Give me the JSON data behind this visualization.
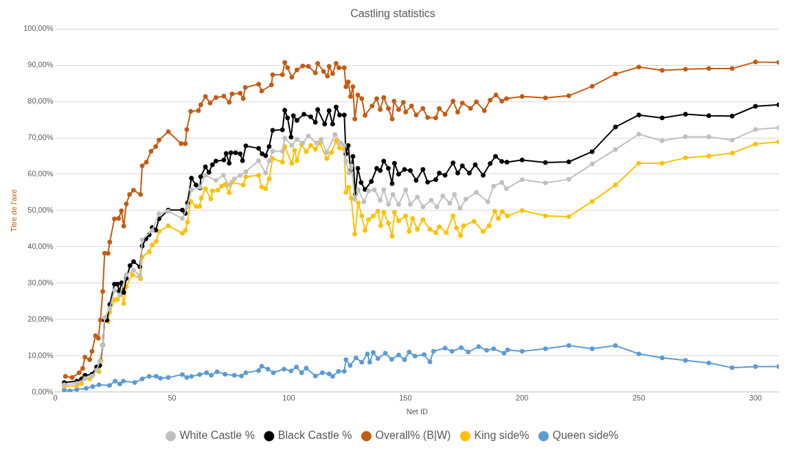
{
  "chart_data": {
    "type": "line",
    "title": "Castling statistics",
    "xlabel": "Net ID",
    "ylabel": "Titre de l'axe",
    "xlim": [
      0,
      310
    ],
    "xticks": [
      0,
      50,
      100,
      150,
      200,
      250,
      300
    ],
    "ylim": [
      0,
      100
    ],
    "yticks": [
      {
        "value": 0,
        "label": "0,00%"
      },
      {
        "value": 10,
        "label": "10,00%"
      },
      {
        "value": 20,
        "label": "20,00%"
      },
      {
        "value": 30,
        "label": "30,00%"
      },
      {
        "value": 40,
        "label": "40,00%"
      },
      {
        "value": 50,
        "label": "50,00%"
      },
      {
        "value": 60,
        "label": "60,00%"
      },
      {
        "value": 70,
        "label": "70,00%"
      },
      {
        "value": 80,
        "label": "80,00%"
      },
      {
        "value": 90,
        "label": "90,00%"
      },
      {
        "value": 100,
        "label": "100,00%"
      }
    ],
    "grid": "y",
    "legend": "bottom",
    "marker": "circle",
    "line_style": "solid",
    "series": [
      {
        "name": "White Castle %",
        "color": "#c0c0c0",
        "x": [
          3.8,
          9.2,
          12.7,
          15.7,
          17.7,
          19.0,
          20.3,
          21.1,
          23.3,
          25.3,
          27.6,
          30.4,
          33.5,
          36.2,
          37.2,
          41.5,
          44.4,
          48.4,
          54.4,
          56.6,
          58.3,
          62.0,
          64.3,
          68.8,
          72.0,
          74.2,
          76.7,
          79.2,
          81.6,
          87.1,
          90.1,
          91.6,
          93.1,
          97.3,
          98.3,
          101.3,
          103.5,
          106,
          108.4,
          111.9,
          113.9,
          116.3,
          119.8,
          122.3,
          123.8,
          124.5,
          125.8,
          126.8,
          128.3,
          129.8,
          132.2,
          134.2,
          136.7,
          139.2,
          140.7,
          142.7,
          144.6,
          147.1,
          150.1,
          152.1,
          155.1,
          157.5,
          161,
          163.5,
          166,
          169,
          171,
          173.4,
          175.9,
          180.4,
          185.3,
          187.8,
          191.3,
          193.3,
          200,
          210,
          220,
          230,
          240,
          250,
          260,
          270,
          280,
          290,
          300,
          310
        ],
        "values": [
          2.0,
          2.4,
          3.7,
          4.4,
          6.0,
          8.5,
          12.9,
          20.5,
          23.0,
          28.0,
          26.7,
          32.3,
          33.6,
          32.0,
          41.9,
          44.5,
          49.1,
          49.8,
          47.8,
          51.1,
          55.7,
          56.4,
          59.7,
          58.3,
          59.7,
          57.0,
          58.7,
          59.7,
          60.7,
          63.7,
          60.3,
          63.6,
          66.3,
          66.3,
          69.9,
          67.9,
          69.6,
          68.6,
          70.5,
          68.6,
          69.6,
          66.0,
          70.9,
          68.6,
          67.9,
          63.6,
          60.3,
          62.3,
          53.1,
          55.7,
          52.4,
          55.4,
          55.7,
          52.8,
          55.7,
          51.7,
          54.4,
          51.7,
          55.7,
          51.7,
          53.7,
          51.0,
          52.8,
          51.0,
          54.0,
          52.0,
          54.4,
          50.6,
          53.1,
          55.0,
          52.4,
          56.7,
          57.7,
          56.0,
          58.5,
          57.6,
          58.6,
          62.8,
          66.8,
          71.0,
          69.2,
          70.3,
          70.3,
          69.4,
          72.3,
          72.8
        ]
      },
      {
        "name": "Black Castle %",
        "color": "#000000",
        "x": [
          3.8,
          9.2,
          11.2,
          12.7,
          15.7,
          17.7,
          19.0,
          20.3,
          21.1,
          22.1,
          23.3,
          25.3,
          26.6,
          27.3,
          28.4,
          29.3,
          30.4,
          32.0,
          33.5,
          36.2,
          37.2,
          38.8,
          40.2,
          41.5,
          43.0,
          44.4,
          48.4,
          54.4,
          55.7,
          56.6,
          58.3,
          60.3,
          62.0,
          62.3,
          64.3,
          65.8,
          67.3,
          68.8,
          72.2,
          73.2,
          74.5,
          75.2,
          77.2,
          79.2,
          80.2,
          81.6,
          87.1,
          88.6,
          90.1,
          91.6,
          93.1,
          97.3,
          98.3,
          99.5,
          101,
          102,
          103.5,
          106.5,
          109.4,
          111.4,
          112.4,
          115.4,
          117.3,
          118.8,
          120.3,
          121.8,
          123.8,
          124.5,
          125.5,
          126.5,
          127.5,
          128.5,
          129.6,
          131.0,
          132.7,
          135.4,
          137.7,
          139.2,
          140.7,
          142.7,
          144.3,
          145.3,
          147.1,
          149.6,
          152.1,
          154.6,
          157.5,
          159.5,
          163,
          164.5,
          167,
          170.4,
          172.4,
          174.4,
          177.4,
          179.9,
          183.3,
          186.3,
          188.6,
          191.3,
          193.5,
          200,
          210,
          220,
          230,
          240,
          250,
          260,
          270,
          280,
          290,
          300,
          310
        ],
        "values": [
          2.6,
          3.0,
          3.6,
          4.6,
          4.9,
          6.9,
          7.3,
          12.9,
          19.8,
          19.8,
          24.1,
          29.7,
          29.7,
          27.7,
          30.1,
          27.4,
          31.3,
          34.8,
          35.9,
          34.5,
          40.2,
          42.2,
          43.3,
          45.3,
          44.6,
          47.7,
          50.1,
          50.1,
          49.2,
          52.1,
          58.9,
          57.0,
          56.2,
          59.3,
          62.0,
          60.5,
          62.6,
          63.6,
          63.9,
          65.7,
          63.0,
          65.9,
          65.9,
          65.6,
          63.7,
          67.8,
          67.1,
          65.6,
          65.1,
          67.6,
          72.1,
          72.2,
          77.6,
          75.5,
          70.2,
          76.1,
          74.8,
          76.5,
          75.8,
          74.3,
          77.8,
          73.8,
          77.5,
          73.8,
          78.5,
          76.3,
          76.3,
          65.6,
          67.9,
          61.0,
          64.9,
          54.5,
          61.6,
          57.7,
          55.8,
          58.0,
          61.6,
          61.0,
          63.6,
          61.6,
          57.4,
          63.0,
          60.0,
          61.3,
          61.0,
          58.3,
          61.3,
          57.8,
          58.5,
          60.3,
          59.7,
          63.1,
          60.3,
          62.3,
          60.3,
          62.6,
          59.7,
          62.9,
          64.9,
          63.5,
          63.3,
          63.9,
          63.2,
          63.4,
          66.2,
          73.0,
          76.3,
          75.5,
          76.5,
          76.1,
          76.0,
          78.7,
          79.1
        ]
      },
      {
        "name": "Overall% (B|W)",
        "color": "#c55a11",
        "x": [
          4.3,
          7.2,
          10.2,
          11.7,
          12.7,
          14.7,
          15.7,
          17.2,
          18.4,
          19.3,
          20.3,
          21.1,
          22.6,
          23.3,
          25.3,
          27.1,
          28.3,
          29.3,
          30.4,
          31.8,
          33.5,
          36.5,
          37.2,
          39.0,
          41.0,
          43.0,
          44.4,
          48.4,
          53.9,
          55.7,
          56.3,
          58.0,
          61.3,
          62.3,
          64.3,
          66.3,
          68.8,
          72.2,
          74.5,
          75.7,
          79.2,
          80.5,
          81.4,
          87.1,
          88.4,
          92.6,
          93.1,
          97.3,
          98.3,
          99.5,
          101.3,
          103.5,
          106,
          108.4,
          111.4,
          112.4,
          114.9,
          116.6,
          117.3,
          118.8,
          120.3,
          121.5,
          123.8,
          124.5,
          125.5,
          126.5,
          127.5,
          128.3,
          129.6,
          131.3,
          132.7,
          135.7,
          137.7,
          139.2,
          140.7,
          142.7,
          144.3,
          145.1,
          147.1,
          149.1,
          150.1,
          152.6,
          154.6,
          157.5,
          159.5,
          163,
          164.5,
          167,
          170.4,
          172.4,
          174.4,
          177.9,
          180.4,
          183.8,
          186.3,
          188.8,
          191.3,
          193.3,
          200,
          210,
          220,
          230,
          240,
          250,
          260,
          270,
          280,
          290,
          300,
          310
        ],
        "values": [
          4.3,
          4.0,
          5.3,
          6.5,
          9.6,
          8.9,
          11.2,
          15.5,
          14.8,
          19.8,
          27.7,
          38.2,
          38.2,
          41.3,
          47.7,
          47.8,
          49.9,
          45.7,
          51.8,
          54.4,
          55.6,
          54.4,
          62.3,
          63.3,
          66.3,
          67.6,
          69.4,
          71.7,
          68.4,
          68.4,
          72.3,
          77.3,
          77.5,
          79.1,
          81.4,
          79.6,
          81.1,
          81.5,
          79.8,
          82.1,
          82.3,
          80.8,
          83.9,
          84.8,
          82.9,
          84.6,
          87.4,
          87.4,
          90.8,
          89.3,
          86.7,
          88.7,
          89.8,
          89.7,
          87.9,
          90.5,
          88.3,
          87.0,
          89.7,
          87.7,
          90.5,
          89.3,
          89.3,
          84.1,
          85.4,
          81.4,
          84.1,
          75.2,
          81.8,
          80.8,
          76.2,
          78.8,
          80.8,
          77.8,
          81.1,
          78.1,
          75.2,
          80.1,
          77.8,
          79.8,
          77.1,
          78.8,
          76.3,
          78.1,
          75.6,
          75.5,
          78.1,
          76.5,
          80.1,
          77.1,
          79.6,
          78.1,
          79.9,
          77.5,
          80.4,
          81.8,
          80.1,
          80.8,
          81.4,
          81.0,
          81.6,
          84.2,
          87.6,
          89.5,
          88.6,
          88.9,
          89.1,
          89.1,
          90.9,
          90.8
        ]
      },
      {
        "name": "King side%",
        "color": "#ffc000",
        "x": [
          3.8,
          9.2,
          11.2,
          12.2,
          14.7,
          16.0,
          17.7,
          18.7,
          19.6,
          20.3,
          21.1,
          22.6,
          23.3,
          25.3,
          26.6,
          28.3,
          29.3,
          30.4,
          33.0,
          36.5,
          37.2,
          40.2,
          41.5,
          43.2,
          44.4,
          48.4,
          54.4,
          55.7,
          56.6,
          58.0,
          60.3,
          61.8,
          62.5,
          64.3,
          66.6,
          67.3,
          69.6,
          71.2,
          72.7,
          74.5,
          75.7,
          80.5,
          81.6,
          87.1,
          88.4,
          90.1,
          91.6,
          93.1,
          97.3,
          98.3,
          101.3,
          102.5,
          103.5,
          105.5,
          107.5,
          109.4,
          111.4,
          113.4,
          116.3,
          118.3,
          120.3,
          121.8,
          123.8,
          124.5,
          125.8,
          126.8,
          128.3,
          129.8,
          131.3,
          132.7,
          134.2,
          136.2,
          138.2,
          139.4,
          140.7,
          142.7,
          144.3,
          145.3,
          147.1,
          150.1,
          151.6,
          153.1,
          155.1,
          157.5,
          160.5,
          163,
          164.5,
          167.5,
          170.4,
          171.9,
          173.6,
          174.9,
          179.4,
          183.3,
          185.8,
          188.3,
          189.8,
          191.5,
          193.7,
          200,
          210,
          220,
          230,
          240,
          250,
          260,
          270,
          280,
          290,
          300,
          310
        ],
        "values": [
          1.6,
          1.7,
          2.3,
          4.0,
          3.6,
          4.6,
          6.6,
          5.6,
          8.6,
          12.9,
          19.8,
          19.4,
          22.1,
          25.4,
          25.5,
          28.0,
          24.4,
          29.0,
          32.3,
          31.2,
          37.2,
          38.6,
          40.5,
          41.5,
          44.2,
          45.8,
          43.7,
          44.5,
          46.8,
          52.5,
          51.1,
          51.1,
          53.4,
          56.0,
          53.2,
          55.4,
          55.6,
          56.7,
          57.2,
          54.9,
          57.8,
          57.0,
          59.3,
          59.7,
          56.5,
          56.0,
          58.7,
          64.3,
          63.3,
          67.6,
          63.0,
          66.6,
          63.7,
          68.2,
          66.2,
          67.9,
          66.9,
          68.6,
          64.3,
          66.0,
          69.2,
          67.2,
          66.9,
          55.0,
          56.4,
          53.4,
          43.5,
          52.1,
          48.5,
          44.5,
          47.5,
          48.5,
          49.8,
          45.8,
          49.5,
          46.5,
          42.9,
          49.5,
          47.2,
          48.5,
          44.2,
          47.8,
          44.8,
          47.5,
          44.8,
          43.9,
          45.5,
          43.9,
          48.5,
          45.2,
          43.1,
          45.8,
          47.0,
          44.2,
          45.8,
          49.8,
          47.8,
          49.7,
          48.5,
          50.0,
          48.5,
          48.3,
          52.5,
          57.0,
          63.0,
          63.0,
          64.5,
          65.0,
          65.8,
          68.3,
          68.9
        ]
      },
      {
        "name": "Queen side%",
        "color": "#5b9bd5",
        "x": [
          3.8,
          6.3,
          9.2,
          13.2,
          16.0,
          18.7,
          23.2,
          25.6,
          27.6,
          29.1,
          34.0,
          37.2,
          40.2,
          43.2,
          45.0,
          48.4,
          54.4,
          56.3,
          58.3,
          61.8,
          64.8,
          66.8,
          69.3,
          72.7,
          76.7,
          79.7,
          81.6,
          87.1,
          88.4,
          91.1,
          93.4,
          98.0,
          101,
          103.3,
          105.5,
          107.5,
          111.4,
          114.4,
          117.3,
          118.8,
          121.3,
          123.8,
          124.5,
          126.3,
          128.8,
          131.3,
          133.7,
          134.7,
          136.2,
          138.2,
          141.4,
          144.1,
          147.1,
          149.6,
          151.6,
          154.1,
          158,
          160.5,
          162,
          167,
          170,
          173.9,
          176.9,
          181.4,
          184.8,
          187.8,
          192.3,
          193.8,
          200,
          210,
          220,
          230,
          240,
          250,
          260,
          270,
          280,
          290,
          300,
          310
        ],
        "values": [
          0.5,
          0.3,
          0.7,
          1.0,
          1.5,
          2.0,
          1.8,
          3.0,
          2.2,
          3.0,
          2.6,
          3.6,
          4.3,
          4.3,
          3.8,
          4.0,
          4.8,
          4.0,
          4.3,
          4.8,
          5.3,
          4.6,
          5.6,
          4.9,
          4.6,
          4.4,
          5.3,
          5.9,
          7.1,
          6.3,
          5.3,
          6.3,
          5.8,
          6.9,
          5.3,
          6.6,
          4.4,
          5.3,
          5.0,
          4.3,
          5.7,
          5.7,
          8.9,
          7.3,
          9.4,
          8.2,
          10.5,
          8.2,
          10.9,
          9.2,
          10.7,
          9.0,
          10.2,
          8.9,
          11.0,
          9.9,
          10.3,
          8.3,
          11.2,
          12.1,
          11.2,
          12.2,
          11.0,
          12.5,
          11.5,
          11.9,
          10.7,
          11.6,
          11.2,
          11.9,
          12.8,
          11.9,
          12.8,
          10.5,
          9.4,
          8.7,
          8.0,
          6.7,
          7.0,
          7.0
        ]
      }
    ]
  }
}
